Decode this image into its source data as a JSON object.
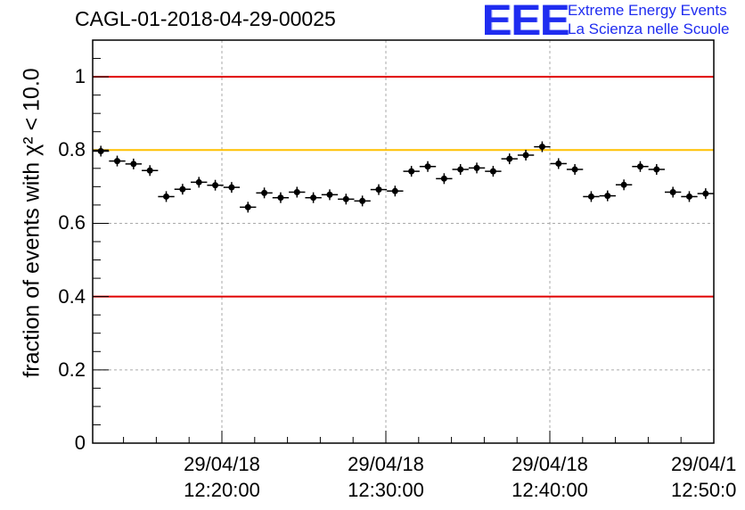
{
  "header": {
    "title": "CAGL-01-2018-04-29-00025",
    "logo_text": "EEE",
    "logo_line1": "Extreme Energy Events",
    "logo_line2": "La Scienza nelle Scuole"
  },
  "chart_data": {
    "type": "scatter",
    "title": "CAGL-01-2018-04-29-00025",
    "ylabel": "fraction of events with χ² < 10.0",
    "ylim": [
      0,
      1.1
    ],
    "yticks": [
      "0",
      "0.2",
      "0.4",
      "0.6",
      "0.8",
      "1"
    ],
    "xticks": [
      {
        "date": "29/04/18",
        "time": "12:20:00"
      },
      {
        "date": "29/04/18",
        "time": "12:30:00"
      },
      {
        "date": "29/04/18",
        "time": "12:40:00"
      },
      {
        "date": "29/04/1",
        "time": "12:50:0"
      }
    ],
    "grid": true,
    "reference_lines": [
      {
        "y": 1.0,
        "color": "#e00000"
      },
      {
        "y": 0.8,
        "color": "#ffc000"
      },
      {
        "y": 0.4,
        "color": "#e00000"
      }
    ],
    "marker_color": "#000000",
    "points": [
      0.797,
      0.77,
      0.762,
      0.744,
      0.673,
      0.693,
      0.712,
      0.704,
      0.698,
      0.644,
      0.683,
      0.67,
      0.685,
      0.67,
      0.678,
      0.666,
      0.661,
      0.692,
      0.688,
      0.742,
      0.755,
      0.722,
      0.747,
      0.751,
      0.742,
      0.776,
      0.786,
      0.809,
      0.763,
      0.747,
      0.673,
      0.675,
      0.705,
      0.755,
      0.747,
      0.685,
      0.673,
      0.681
    ]
  }
}
